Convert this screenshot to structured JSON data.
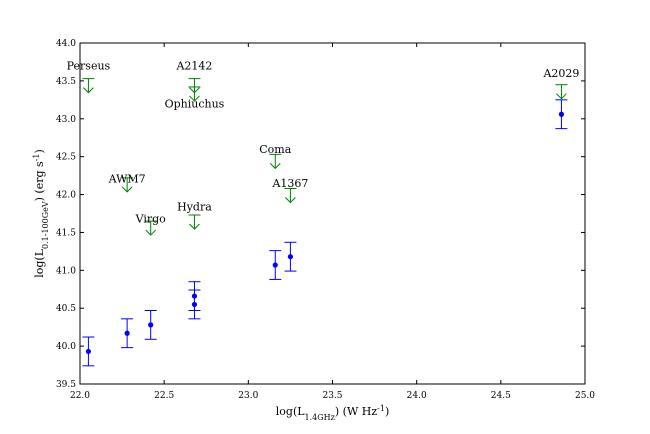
{
  "chart_data": {
    "type": "scatter",
    "xlabel": "log(L_{1.4GHz}) (W Hz^{-1})",
    "ylabel": "log(L_{0.1-100GeV}) (erg s^{-1})",
    "xlim": [
      22.0,
      25.0
    ],
    "ylim": [
      39.5,
      44.0
    ],
    "grid": false,
    "x_ticks": [
      "22.0",
      "22.5",
      "23.0",
      "23.5",
      "24.0",
      "24.5",
      "25.0"
    ],
    "y_ticks": [
      "39.5",
      "40.0",
      "40.5",
      "41.0",
      "41.5",
      "42.0",
      "42.5",
      "43.0",
      "43.5",
      "44.0"
    ],
    "colors": {
      "detections": "#0000ff",
      "upper_limits": "#008000"
    },
    "detections": [
      {
        "x": 22.05,
        "y": 39.93,
        "yerr": 0.19
      },
      {
        "x": 22.28,
        "y": 40.17,
        "yerr": 0.19
      },
      {
        "x": 22.42,
        "y": 40.28,
        "yerr": 0.19
      },
      {
        "x": 22.68,
        "y": 40.55,
        "yerr": 0.19
      },
      {
        "x": 22.68,
        "y": 40.66,
        "yerr": 0.19
      },
      {
        "x": 23.16,
        "y": 41.07,
        "yerr": 0.19
      },
      {
        "x": 23.25,
        "y": 41.18,
        "yerr": 0.19
      },
      {
        "x": 24.86,
        "y": 43.06,
        "yerr": 0.19
      }
    ],
    "upper_limits": [
      {
        "label": "Perseus",
        "x": 22.05,
        "y": 43.53,
        "label_x": 22.05,
        "label_y": 43.65
      },
      {
        "label": "A2142",
        "x": 22.68,
        "y": 43.53,
        "label_x": 22.68,
        "label_y": 43.65
      },
      {
        "label": "Ophiuchus",
        "x": 22.68,
        "y": 43.42,
        "label_x": 22.68,
        "label_y": 43.15
      },
      {
        "label": "AWM7",
        "x": 22.28,
        "y": 42.22,
        "label_x": 22.28,
        "label_y": 42.16
      },
      {
        "label": "Virgo",
        "x": 22.42,
        "y": 41.65,
        "label_x": 22.42,
        "label_y": 41.63
      },
      {
        "label": "Hydra",
        "x": 22.68,
        "y": 41.73,
        "label_x": 22.68,
        "label_y": 41.79
      },
      {
        "label": "Coma",
        "x": 23.16,
        "y": 42.53,
        "label_x": 23.16,
        "label_y": 42.55
      },
      {
        "label": "A1367",
        "x": 23.25,
        "y": 42.08,
        "label_x": 23.25,
        "label_y": 42.1
      },
      {
        "label": "A2029",
        "x": 24.86,
        "y": 43.45,
        "label_x": 24.86,
        "label_y": 43.55
      }
    ]
  }
}
